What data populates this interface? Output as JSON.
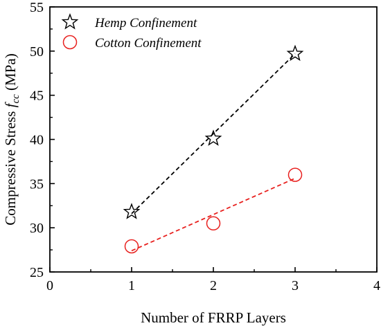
{
  "chart_data": {
    "type": "scatter",
    "xlabel": "Number of FRRP Layers",
    "ylabel_prefix": "Compressive Stress ",
    "ylabel_symbol": "f",
    "ylabel_subscript": "cc",
    "ylabel_unit": " (MPa)",
    "xlim": [
      0,
      4
    ],
    "ylim": [
      25,
      55
    ],
    "x_ticks": [
      "0",
      "1",
      "2",
      "3",
      "4"
    ],
    "y_ticks": [
      "25",
      "30",
      "35",
      "40",
      "45",
      "50",
      "55"
    ],
    "grid": false,
    "legend_position": "top-left",
    "series": [
      {
        "name": "Hemp Confinement",
        "marker": "star",
        "color": "#000000",
        "line_color": "#000000",
        "fit_line": "dashed",
        "x": [
          1,
          2,
          3
        ],
        "y": [
          31.8,
          40.1,
          49.7
        ],
        "fit": [
          [
            1,
            31.6
          ],
          [
            3,
            49.7
          ]
        ]
      },
      {
        "name": "Cotton Confinement",
        "marker": "circle",
        "color": "#e8201e",
        "line_color": "#e8201e",
        "fit_line": "dashed",
        "x": [
          1,
          2,
          3
        ],
        "y": [
          27.9,
          30.5,
          36.0
        ],
        "fit": [
          [
            1,
            27.4
          ],
          [
            3,
            35.6
          ]
        ]
      }
    ]
  }
}
